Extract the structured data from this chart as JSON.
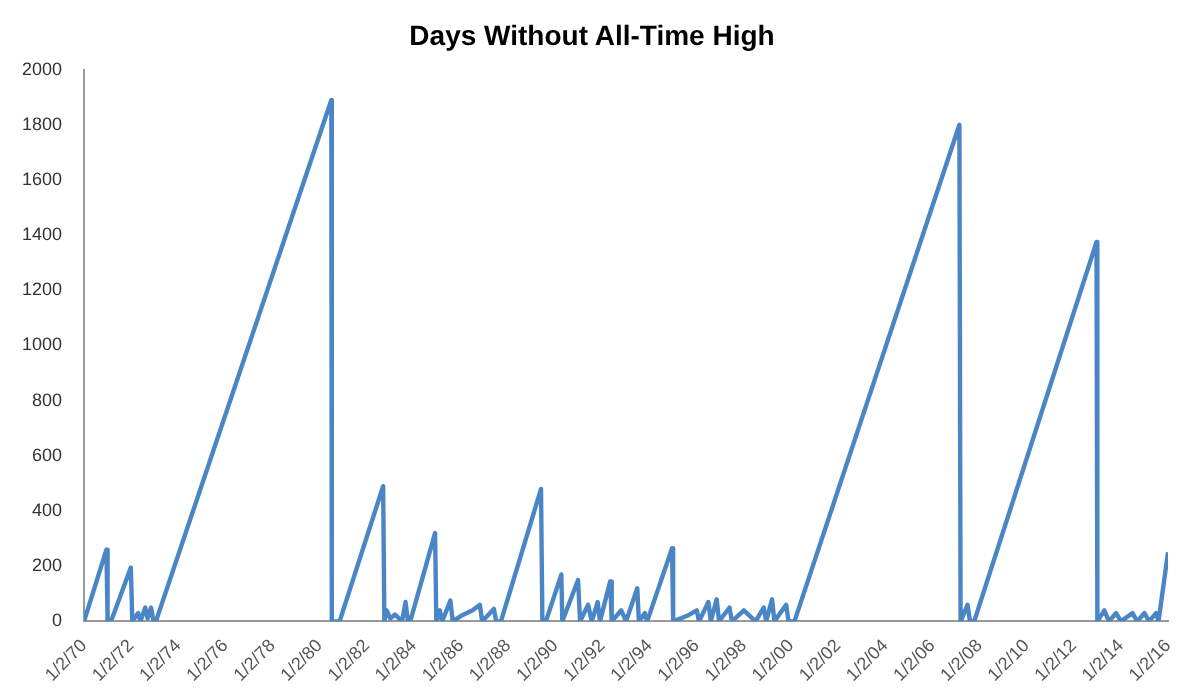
{
  "chart_data": {
    "type": "line",
    "title": "Days Without All-Time High",
    "marker": "none",
    "line_style": "solid",
    "xlim": [
      "1970-01-02",
      "2016-01-02"
    ],
    "xticks": [
      {
        "value": "1970-01-02",
        "label": "1/2/70"
      },
      {
        "value": "1972-01-02",
        "label": "1/2/72"
      },
      {
        "value": "1974-01-02",
        "label": "1/2/74"
      },
      {
        "value": "1976-01-02",
        "label": "1/2/76"
      },
      {
        "value": "1978-01-02",
        "label": "1/2/78"
      },
      {
        "value": "1980-01-02",
        "label": "1/2/80"
      },
      {
        "value": "1982-01-02",
        "label": "1/2/82"
      },
      {
        "value": "1984-01-02",
        "label": "1/2/84"
      },
      {
        "value": "1986-01-02",
        "label": "1/2/86"
      },
      {
        "value": "1988-01-02",
        "label": "1/2/88"
      },
      {
        "value": "1990-01-02",
        "label": "1/2/90"
      },
      {
        "value": "1992-01-02",
        "label": "1/2/92"
      },
      {
        "value": "1994-01-02",
        "label": "1/2/94"
      },
      {
        "value": "1996-01-02",
        "label": "1/2/96"
      },
      {
        "value": "1998-01-02",
        "label": "1/2/98"
      },
      {
        "value": "2000-01-02",
        "label": "1/2/00"
      },
      {
        "value": "2002-01-02",
        "label": "1/2/02"
      },
      {
        "value": "2004-01-02",
        "label": "1/2/04"
      },
      {
        "value": "2006-01-02",
        "label": "1/2/06"
      },
      {
        "value": "2008-01-02",
        "label": "1/2/08"
      },
      {
        "value": "2010-01-02",
        "label": "1/2/10"
      },
      {
        "value": "2012-01-02",
        "label": "1/2/12"
      },
      {
        "value": "2014-01-02",
        "label": "1/2/14"
      },
      {
        "value": "2016-01-02",
        "label": "1/2/16"
      }
    ],
    "ylim": [
      0,
      2000
    ],
    "yticks": [
      0,
      200,
      400,
      600,
      800,
      1000,
      1200,
      1400,
      1600,
      1800,
      2000
    ],
    "x": [
      "1970-01-02",
      "1970-12-15",
      "1971-01-02",
      "1971-02-25",
      "1971-12-28",
      "1972-01-20",
      "1972-04-20",
      "1972-05-25",
      "1972-08-08",
      "1972-09-12",
      "1972-11-06",
      "1972-12-14",
      "1973-01-20",
      "1980-07-01",
      "1980-07-08",
      "1980-11-06",
      "1982-09-12",
      "1982-10-01",
      "1982-11-06",
      "1983-01-02",
      "1983-03-15",
      "1983-07-01",
      "1983-08-25",
      "1983-10-01",
      "1983-11-06",
      "1984-11-25",
      "1984-12-14",
      "1985-02-07",
      "1985-03-15",
      "1985-07-20",
      "1985-08-25",
      "1986-01-02",
      "1986-07-01",
      "1986-10-20",
      "1986-11-25",
      "1987-05-25",
      "1987-07-01",
      "1987-09-12",
      "1989-05-25",
      "1989-06-15",
      "1989-08-08",
      "1990-04-05",
      "1990-04-20",
      "1990-12-20",
      "1991-01-20",
      "1991-05-25",
      "1991-07-20",
      "1991-10-20",
      "1991-11-25",
      "1992-05-01",
      "1992-05-25",
      "1992-10-20",
      "1993-01-02",
      "1993-06-25",
      "1993-07-20",
      "1993-10-20",
      "1993-11-25",
      "1994-12-16",
      "1995-01-02",
      "1995-08-08",
      "1996-01-02",
      "1996-02-07",
      "1996-07-01",
      "1996-08-08",
      "1996-11-06",
      "1996-12-14",
      "1997-05-25",
      "1997-07-01",
      "1998-01-02",
      "1998-07-01",
      "1998-11-06",
      "1998-12-14",
      "1999-03-15",
      "1999-04-20",
      "1999-10-20",
      "1999-11-25",
      "2000-02-25",
      "2007-02-25",
      "2007-03-15",
      "2007-07-01",
      "2007-08-08",
      "2007-10-12",
      "2012-12-20",
      "2013-01-02",
      "2013-04-20",
      "2013-07-01",
      "2013-10-20",
      "2014-01-02",
      "2014-07-01",
      "2014-09-12",
      "2015-01-02",
      "2015-03-15",
      "2015-07-01",
      "2015-08-08",
      "2016-01-02"
    ],
    "series": [
      {
        "color": "#4a86c5",
        "values": [
          0,
          260,
          0,
          0,
          195,
          0,
          30,
          0,
          50,
          10,
          50,
          0,
          0,
          1890,
          0,
          0,
          490,
          0,
          40,
          10,
          25,
          0,
          70,
          0,
          0,
          320,
          0,
          40,
          0,
          75,
          0,
          20,
          40,
          60,
          0,
          45,
          0,
          0,
          480,
          0,
          0,
          170,
          0,
          150,
          0,
          60,
          0,
          70,
          0,
          145,
          0,
          40,
          0,
          120,
          0,
          30,
          0,
          265,
          0,
          20,
          40,
          0,
          70,
          0,
          80,
          0,
          50,
          0,
          40,
          0,
          50,
          0,
          80,
          0,
          60,
          0,
          0,
          1800,
          0,
          60,
          0,
          0,
          1375,
          0,
          40,
          0,
          30,
          0,
          30,
          0,
          30,
          0,
          30,
          0,
          250
        ]
      }
    ]
  }
}
